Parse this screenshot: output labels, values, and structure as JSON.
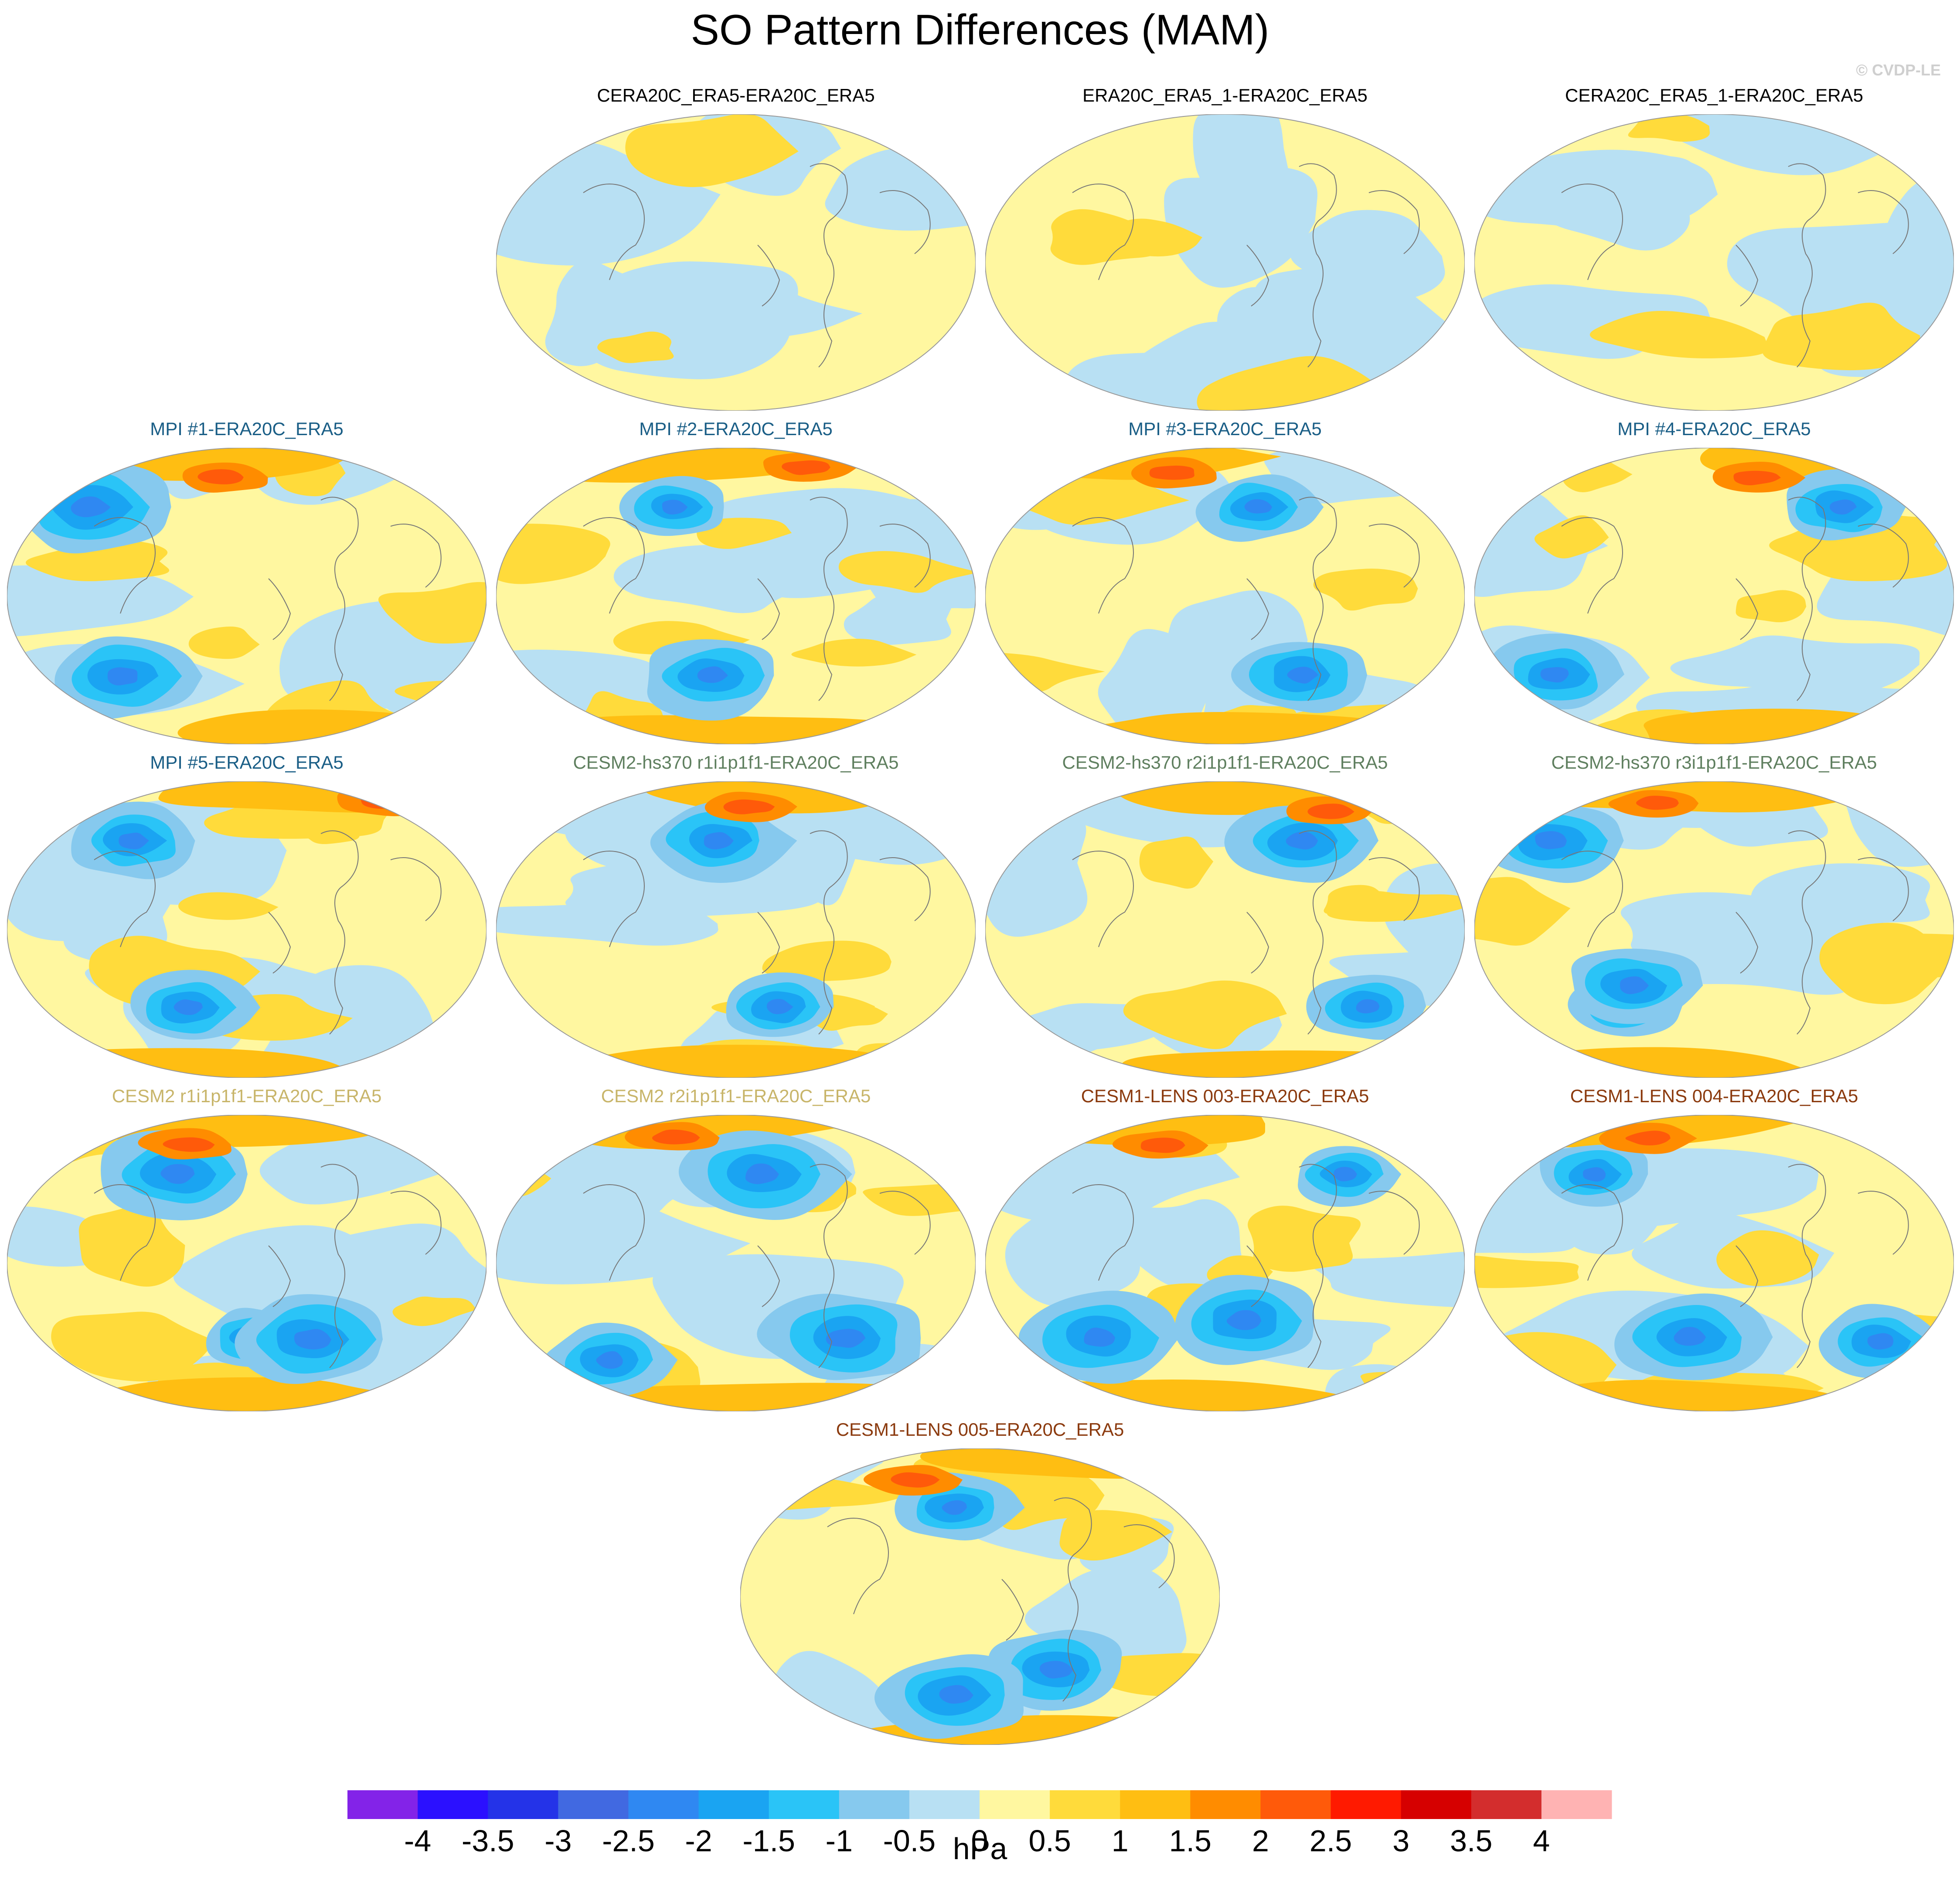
{
  "title": "SO Pattern Differences (MAM)",
  "watermark": "© CVDP-LE",
  "units": "hPa",
  "colorbar": {
    "colors": [
      "#8323e8",
      "#2b10ff",
      "#2433e8",
      "#4169e1",
      "#2f88f2",
      "#1aa4f2",
      "#2ac4f7",
      "#86c9ee",
      "#b8e0f3",
      "#fff7a0",
      "#ffdb3b",
      "#ffbe12",
      "#ff8c00",
      "#ff5a0a",
      "#ff1a00",
      "#d60000",
      "#d32d2d",
      "#ffb3b3"
    ],
    "labels": [
      "-4",
      "-3.5",
      "-3",
      "-2.5",
      "-2",
      "-1.5",
      "-1",
      "-0.5",
      "0",
      "0.5",
      "1",
      "1.5",
      "2",
      "2.5",
      "3",
      "3.5",
      "4"
    ]
  },
  "panels": [
    {
      "title": "CERA20C_ERA5-ERA20C_ERA5",
      "title_color": "#000000",
      "variant": 0
    },
    {
      "title": "ERA20C_ERA5_1-ERA20C_ERA5",
      "title_color": "#000000",
      "variant": 1
    },
    {
      "title": "CERA20C_ERA5_1-ERA20C_ERA5",
      "title_color": "#000000",
      "variant": 2
    },
    {
      "title": "MPI #1-ERA20C_ERA5",
      "title_color": "#1a5e86",
      "variant": 3
    },
    {
      "title": "MPI #2-ERA20C_ERA5",
      "title_color": "#1a5e86",
      "variant": 4
    },
    {
      "title": "MPI #3-ERA20C_ERA5",
      "title_color": "#1a5e86",
      "variant": 5
    },
    {
      "title": "MPI #4-ERA20C_ERA5",
      "title_color": "#1a5e86",
      "variant": 6
    },
    {
      "title": "MPI #5-ERA20C_ERA5",
      "title_color": "#1a5e86",
      "variant": 7
    },
    {
      "title": "CESM2-hs370 r1i1p1f1-ERA20C_ERA5",
      "title_color": "#5f7f5f",
      "variant": 8
    },
    {
      "title": "CESM2-hs370 r2i1p1f1-ERA20C_ERA5",
      "title_color": "#5f7f5f",
      "variant": 9
    },
    {
      "title": "CESM2-hs370 r3i1p1f1-ERA20C_ERA5",
      "title_color": "#5f7f5f",
      "variant": 10
    },
    {
      "title": "CESM2 r1i1p1f1-ERA20C_ERA5",
      "title_color": "#c8b56a",
      "variant": 11
    },
    {
      "title": "CESM2 r2i1p1f1-ERA20C_ERA5",
      "title_color": "#c8b56a",
      "variant": 12
    },
    {
      "title": "CESM1-LENS 003-ERA20C_ERA5",
      "title_color": "#8b3a0e",
      "variant": 13
    },
    {
      "title": "CESM1-LENS 004-ERA20C_ERA5",
      "title_color": "#8b3a0e",
      "variant": 14
    },
    {
      "title": "CESM1-LENS 005-ERA20C_ERA5",
      "title_color": "#8b3a0e",
      "variant": 15
    }
  ]
}
